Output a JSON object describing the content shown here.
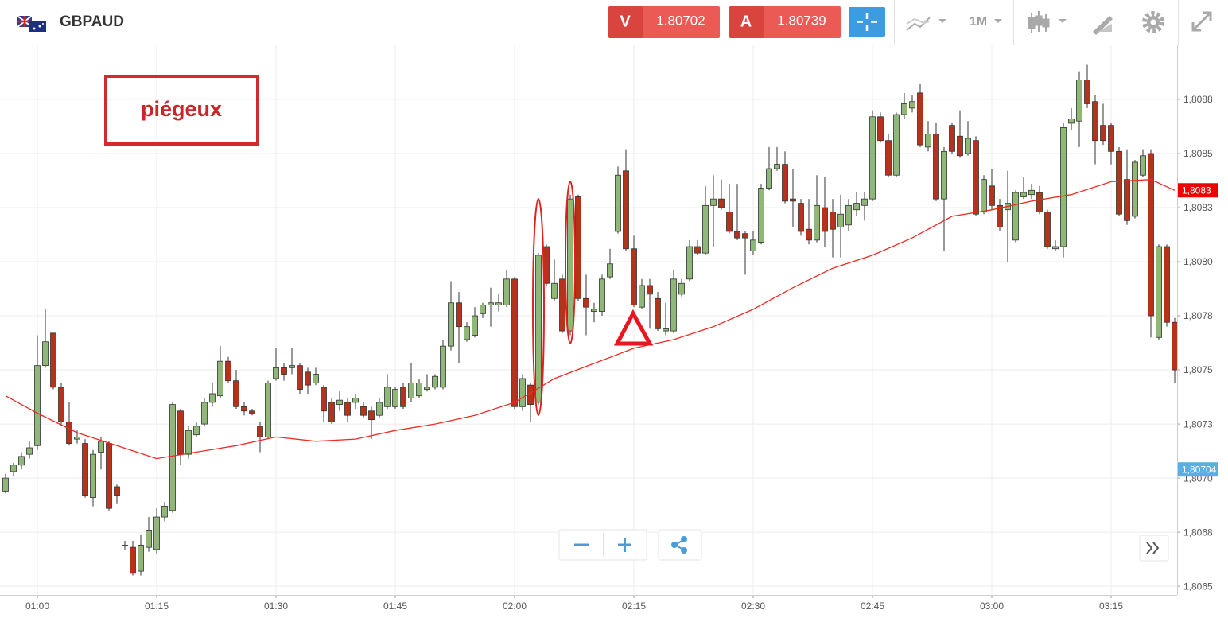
{
  "header": {
    "symbol": "GBPAUD",
    "sell": {
      "label": "V",
      "price": "1.80702"
    },
    "buy": {
      "label": "A",
      "price": "1.80739"
    },
    "timeframe": "1M"
  },
  "chart_data": {
    "type": "candlestick",
    "annotation": "piégeux",
    "up_color": "#8fb878",
    "down_color": "#b5321c",
    "x": [
      "00:56",
      "00:57",
      "00:58",
      "00:59",
      "01:00",
      "01:01",
      "01:02",
      "01:03",
      "01:04",
      "01:05",
      "01:06",
      "01:07",
      "01:08",
      "01:09",
      "01:10",
      "01:11",
      "01:12",
      "01:13",
      "01:14",
      "01:15",
      "01:16",
      "01:17",
      "01:18",
      "01:19",
      "01:20",
      "01:21",
      "01:22",
      "01:23",
      "01:24",
      "01:25",
      "01:26",
      "01:27",
      "01:28",
      "01:29",
      "01:30",
      "01:31",
      "01:32",
      "01:33",
      "01:34",
      "01:35",
      "01:36",
      "01:37",
      "01:38",
      "01:39",
      "01:40",
      "01:41",
      "01:42",
      "01:43",
      "01:44",
      "01:45",
      "01:46",
      "01:47",
      "01:48",
      "01:49",
      "01:50",
      "01:51",
      "01:52",
      "01:53",
      "01:54",
      "01:55",
      "01:56",
      "01:57",
      "01:58",
      "01:59",
      "02:00",
      "02:01",
      "02:02",
      "02:03",
      "02:04",
      "02:05",
      "02:06",
      "02:07",
      "02:08",
      "02:09",
      "02:10",
      "02:11",
      "02:12",
      "02:13",
      "02:14",
      "02:15",
      "02:16",
      "02:17",
      "02:18",
      "02:19",
      "02:20",
      "02:21",
      "02:22",
      "02:23",
      "02:24",
      "02:25",
      "02:26",
      "02:27",
      "02:28",
      "02:29",
      "02:30",
      "02:31",
      "02:32",
      "02:33",
      "02:34",
      "02:35",
      "02:36",
      "02:37",
      "02:38",
      "02:39",
      "02:40",
      "02:41",
      "02:42",
      "02:43",
      "02:44",
      "02:45",
      "02:46",
      "02:47",
      "02:48",
      "02:49",
      "02:50",
      "02:51",
      "02:52",
      "02:53",
      "02:54",
      "02:55",
      "02:56",
      "02:57",
      "02:58",
      "02:59",
      "03:00",
      "03:01",
      "03:02",
      "03:03",
      "03:04",
      "03:05",
      "03:06",
      "03:07",
      "03:08",
      "03:09",
      "03:10",
      "03:11",
      "03:12",
      "03:13",
      "03:14",
      "03:15",
      "03:16",
      "03:17",
      "03:18",
      "03:19",
      "03:20",
      "03:21",
      "03:22",
      "03:23"
    ],
    "open": [
      1.80694,
      1.80703,
      1.80706,
      1.80711,
      1.80715,
      1.80752,
      1.80767,
      1.80742,
      1.80726,
      1.80718,
      1.80716,
      1.80691,
      1.80712,
      1.80716,
      1.80696,
      1.80669,
      1.80668,
      1.80657,
      1.80668,
      1.80667,
      1.80682,
      1.80685,
      1.80731,
      1.80711,
      1.8072,
      1.80725,
      1.80735,
      1.80738,
      1.80754,
      1.80745,
      1.80733,
      1.80731,
      1.80724,
      1.80719,
      1.80746,
      1.80751,
      1.80751,
      1.80752,
      1.80749,
      1.80744,
      1.80742,
      1.80735,
      1.80734,
      1.80735,
      1.80735,
      1.80733,
      1.80731,
      1.80729,
      1.80733,
      1.80733,
      1.80742,
      1.80737,
      1.80738,
      1.80741,
      1.80742,
      1.80742,
      1.80761,
      1.80781,
      1.80764,
      1.80766,
      1.80776,
      1.8078,
      1.8078,
      1.8078,
      1.80792,
      1.80733,
      1.80743,
      1.80735,
      1.80807,
      1.80783,
      1.80792,
      1.80768,
      1.8083,
      1.80783,
      1.80777,
      1.80777,
      1.80793,
      1.80814,
      1.80842,
      1.80806,
      1.80779,
      1.80789,
      1.80783,
      1.80768,
      1.80768,
      1.80785,
      1.80792,
      1.80807,
      1.80804,
      1.80826,
      1.80829,
      1.80823,
      1.80814,
      1.80813,
      1.80805,
      1.80809,
      1.80834,
      1.80843,
      1.80845,
      1.80829,
      1.80827,
      1.80815,
      1.8081,
      1.80825,
      1.80823,
      1.80816,
      1.80817,
      1.80824,
      1.80826,
      1.80829,
      1.80867,
      1.80856,
      1.8084,
      1.80868,
      1.80871,
      1.80878,
      1.80853,
      1.80859,
      1.80829,
      1.80863,
      1.80858,
      1.8085,
      1.80856,
      1.80823,
      1.80835,
      1.80826,
      1.80824,
      1.8081,
      1.8083,
      1.80831,
      1.80832,
      1.80823,
      1.80806,
      1.80807,
      1.80864,
      1.80865,
      1.80884,
      1.80874,
      1.80863,
      1.80863,
      1.80851,
      1.80838,
      1.80821,
      1.8084,
      1.8085,
      1.80765,
      1.80807,
      1.80772
    ],
    "high": [
      1.80702,
      1.80707,
      1.80712,
      1.80717,
      1.80766,
      1.80778,
      1.80767,
      1.80744,
      1.80735,
      1.80722,
      1.80718,
      1.80713,
      1.80719,
      1.80717,
      1.80697,
      1.80671,
      1.80671,
      1.80674,
      1.80682,
      1.80686,
      1.80689,
      1.80735,
      1.80732,
      1.80724,
      1.80726,
      1.80737,
      1.80744,
      1.80761,
      1.80756,
      1.8075,
      1.80735,
      1.80732,
      1.80726,
      1.80745,
      1.8076,
      1.80753,
      1.8076,
      1.80753,
      1.80751,
      1.80751,
      1.80743,
      1.80737,
      1.8074,
      1.80737,
      1.80739,
      1.80735,
      1.80733,
      1.80737,
      1.80748,
      1.80742,
      1.80744,
      1.80753,
      1.80746,
      1.80748,
      1.80748,
      1.80764,
      1.80791,
      1.80786,
      1.80772,
      1.80779,
      1.80781,
      1.80788,
      1.80785,
      1.80796,
      1.80793,
      1.80748,
      1.80744,
      1.80804,
      1.80808,
      1.80801,
      1.80794,
      1.80831,
      1.80831,
      1.80794,
      1.80781,
      1.80794,
      1.80806,
      1.80844,
      1.80852,
      1.80812,
      1.80792,
      1.80792,
      1.80786,
      1.80781,
      1.80796,
      1.80792,
      1.8081,
      1.8081,
      1.80835,
      1.8084,
      1.80838,
      1.80836,
      1.80836,
      1.80814,
      1.80814,
      1.80836,
      1.80853,
      1.80853,
      1.80851,
      1.80843,
      1.80829,
      1.80829,
      1.8084,
      1.80839,
      1.80829,
      1.80831,
      1.80829,
      1.80832,
      1.80832,
      1.8087,
      1.80869,
      1.80859,
      1.80869,
      1.80878,
      1.80877,
      1.80882,
      1.80865,
      1.80864,
      1.80853,
      1.80864,
      1.8087,
      1.80865,
      1.80858,
      1.8084,
      1.80843,
      1.80829,
      1.80842,
      1.80833,
      1.80839,
      1.80836,
      1.80835,
      1.80824,
      1.8081,
      1.80864,
      1.80871,
      1.80888,
      1.80891,
      1.80877,
      1.80873,
      1.80864,
      1.80853,
      1.80852,
      1.80847,
      1.80852,
      1.80852,
      1.80808,
      1.80808,
      1.80774
    ],
    "low": [
      1.80693,
      1.80701,
      1.80704,
      1.80709,
      1.80713,
      1.80751,
      1.80741,
      1.80724,
      1.80715,
      1.80716,
      1.80691,
      1.80687,
      1.80704,
      1.80685,
      1.80688,
      1.80667,
      1.80655,
      1.80655,
      1.80666,
      1.80665,
      1.8068,
      1.80684,
      1.80706,
      1.80709,
      1.80719,
      1.80724,
      1.80733,
      1.80737,
      1.80744,
      1.80732,
      1.80729,
      1.80729,
      1.80712,
      1.80718,
      1.80745,
      1.80745,
      1.80748,
      1.80739,
      1.80739,
      1.80743,
      1.80726,
      1.80725,
      1.80731,
      1.80726,
      1.80732,
      1.80728,
      1.80718,
      1.80728,
      1.80732,
      1.80732,
      1.80732,
      1.80735,
      1.80737,
      1.8074,
      1.80741,
      1.80741,
      1.80759,
      1.80753,
      1.80763,
      1.80765,
      1.80774,
      1.8077,
      1.80777,
      1.80779,
      1.80732,
      1.80731,
      1.80726,
      1.80734,
      1.80789,
      1.80782,
      1.80767,
      1.80766,
      1.80782,
      1.80766,
      1.80772,
      1.80775,
      1.80792,
      1.80813,
      1.80805,
      1.80779,
      1.80778,
      1.80769,
      1.80768,
      1.80766,
      1.80767,
      1.80784,
      1.80791,
      1.80803,
      1.80803,
      1.80807,
      1.80824,
      1.80813,
      1.8081,
      1.80794,
      1.80803,
      1.80808,
      1.80833,
      1.80842,
      1.80827,
      1.80816,
      1.80812,
      1.80808,
      1.80809,
      1.80807,
      1.80802,
      1.80802,
      1.80814,
      1.80821,
      1.80819,
      1.80828,
      1.80855,
      1.80839,
      1.80839,
      1.80866,
      1.80869,
      1.80853,
      1.80851,
      1.80828,
      1.80805,
      1.8085,
      1.80848,
      1.80849,
      1.80821,
      1.80822,
      1.80824,
      1.80814,
      1.808,
      1.80809,
      1.80829,
      1.80829,
      1.80822,
      1.80806,
      1.80805,
      1.80802,
      1.80861,
      1.80853,
      1.80871,
      1.80845,
      1.80854,
      1.80845,
      1.80821,
      1.80817,
      1.8082,
      1.80839,
      1.80765,
      1.80764,
      1.8077,
      1.80744
    ],
    "close": [
      1.807,
      1.80706,
      1.8071,
      1.80714,
      1.80752,
      1.80763,
      1.80742,
      1.80726,
      1.80716,
      1.80719,
      1.80692,
      1.80711,
      1.80717,
      1.80686,
      1.80692,
      1.80669,
      1.80656,
      1.80669,
      1.80676,
      1.80682,
      1.80687,
      1.80734,
      1.80711,
      1.80722,
      1.80724,
      1.80735,
      1.80739,
      1.80754,
      1.80745,
      1.80733,
      1.80731,
      1.8073,
      1.80719,
      1.80744,
      1.80751,
      1.80748,
      1.80752,
      1.80741,
      1.80743,
      1.80748,
      1.80731,
      1.80726,
      1.80736,
      1.80729,
      1.80737,
      1.80729,
      1.80727,
      1.80735,
      1.80742,
      1.80741,
      1.80733,
      1.80744,
      1.80744,
      1.80742,
      1.80747,
      1.80761,
      1.80781,
      1.8077,
      1.8077,
      1.80775,
      1.8078,
      1.80781,
      1.80781,
      1.80792,
      1.80733,
      1.80746,
      1.80734,
      1.80803,
      1.8079,
      1.8079,
      1.80768,
      1.80829,
      1.80783,
      1.80779,
      1.80778,
      1.80792,
      1.80799,
      1.8084,
      1.80806,
      1.8078,
      1.80789,
      1.80785,
      1.80769,
      1.80769,
      1.80792,
      1.8079,
      1.80807,
      1.80804,
      1.80826,
      1.80829,
      1.80825,
      1.80814,
      1.80811,
      1.80811,
      1.8081,
      1.80834,
      1.80843,
      1.80845,
      1.80828,
      1.80828,
      1.80814,
      1.8081,
      1.80826,
      1.80814,
      1.80815,
      1.80822,
      1.80826,
      1.80827,
      1.80829,
      1.80867,
      1.80856,
      1.8084,
      1.80868,
      1.80873,
      1.80874,
      1.80854,
      1.80859,
      1.80829,
      1.80851,
      1.80851,
      1.80849,
      1.80857,
      1.80822,
      1.80838,
      1.80826,
      1.80816,
      1.80827,
      1.80832,
      1.80832,
      1.80833,
      1.80823,
      1.80807,
      1.80807,
      1.80862,
      1.80866,
      1.80884,
      1.80873,
      1.80856,
      1.80856,
      1.80851,
      1.80822,
      1.80819,
      1.80846,
      1.80849,
      1.80775,
      1.80807,
      1.80772,
      1.8075
    ],
    "ma": {
      "color": "#ee2a24",
      "x": [
        "00:56",
        "01:00",
        "01:05",
        "01:10",
        "01:15",
        "01:20",
        "01:25",
        "01:30",
        "01:35",
        "01:40",
        "01:45",
        "01:50",
        "01:55",
        "02:00",
        "02:05",
        "02:10",
        "02:15",
        "02:20",
        "02:25",
        "02:30",
        "02:35",
        "02:40",
        "02:45",
        "02:50",
        "02:55",
        "03:00",
        "03:05",
        "03:10",
        "03:15",
        "03:20",
        "03:23"
      ],
      "values": [
        1.80738,
        1.8073,
        1.80721,
        1.80715,
        1.80709,
        1.80712,
        1.80715,
        1.80719,
        1.80717,
        1.80718,
        1.80722,
        1.80725,
        1.80729,
        1.80735,
        1.80746,
        1.80753,
        1.8076,
        1.80764,
        1.8077,
        1.80778,
        1.80788,
        1.80797,
        1.80803,
        1.80811,
        1.80821,
        1.80824,
        1.80828,
        1.80831,
        1.80837,
        1.80838,
        1.80833
      ],
      "last": {
        "value": 1.80833,
        "label": "1,8083"
      }
    },
    "price_marker": {
      "value": 1.80704,
      "label": "1,80704",
      "color": "#5aaee0"
    },
    "xlim": [
      "00:55",
      "03:24"
    ],
    "xticks": [
      "01:00",
      "01:15",
      "01:30",
      "01:45",
      "02:00",
      "02:15",
      "02:30",
      "02:45",
      "03:00",
      "03:15"
    ],
    "ylim": [
      1.80646,
      1.809
    ],
    "yticks": [
      {
        "value": 1.8065,
        "label": "1,8065"
      },
      {
        "value": 1.80675,
        "label": "1,8068"
      },
      {
        "value": 1.807,
        "label": "1,8070"
      },
      {
        "value": 1.80725,
        "label": "1,8073"
      },
      {
        "value": 1.8075,
        "label": "1,8075"
      },
      {
        "value": 1.80775,
        "label": "1,8078"
      },
      {
        "value": 1.808,
        "label": "1,8080"
      },
      {
        "value": 1.80825,
        "label": "1,8083"
      },
      {
        "value": 1.8085,
        "label": "1,8085"
      },
      {
        "value": 1.80875,
        "label": "1,8088"
      }
    ],
    "grid": true
  }
}
